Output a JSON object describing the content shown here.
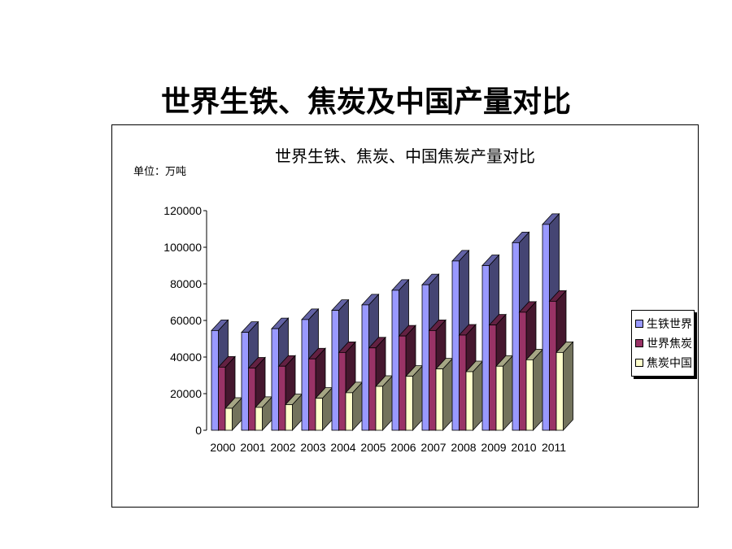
{
  "slide": {
    "title": "世界生铁、焦炭及中国产量对比"
  },
  "chart_data": {
    "type": "bar",
    "title": "世界生铁、焦炭、中国焦炭产量对比",
    "unit_label": "单位：万吨",
    "categories": [
      "2000",
      "2001",
      "2002",
      "2003",
      "2004",
      "2005",
      "2006",
      "2007",
      "2008",
      "2009",
      "2010",
      "2011"
    ],
    "ylim": [
      0,
      120000
    ],
    "yticks": [
      0,
      20000,
      40000,
      60000,
      80000,
      100000,
      120000
    ],
    "legend_position": "right",
    "series": [
      {
        "name": "生铁世界",
        "color": "#9999ff",
        "values": [
          54500,
          53500,
          55500,
          60500,
          65500,
          68500,
          76500,
          79500,
          92500,
          90000,
          102500,
          112500
        ]
      },
      {
        "name": "世界焦炭",
        "color": "#993366",
        "values": [
          34500,
          34000,
          35000,
          39000,
          42500,
          45000,
          51500,
          54500,
          52000,
          57500,
          64500,
          70500
        ]
      },
      {
        "name": "焦炭中国",
        "color": "#ffffcc",
        "values": [
          12000,
          12500,
          14000,
          17500,
          20500,
          24000,
          29500,
          33500,
          32000,
          35000,
          38500,
          42500
        ]
      }
    ]
  }
}
